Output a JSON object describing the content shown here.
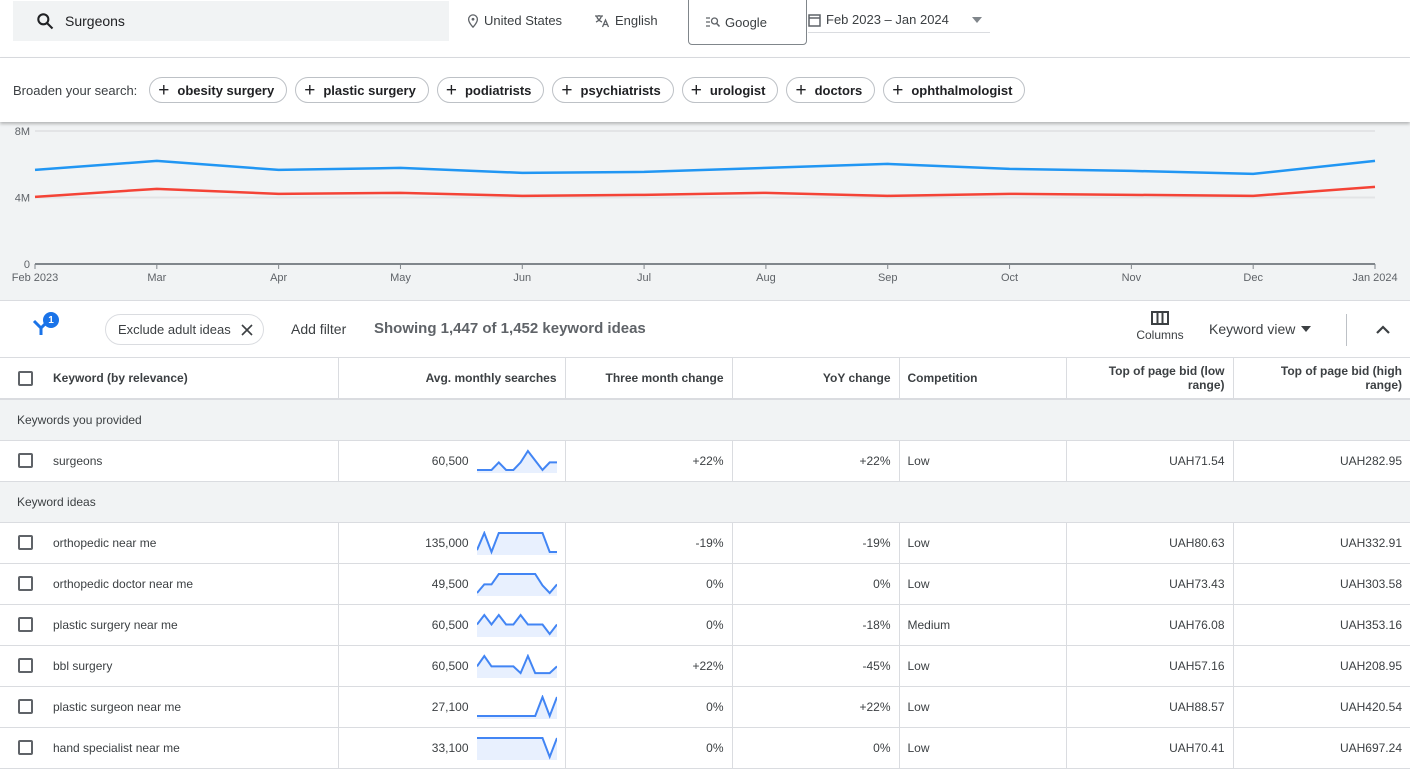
{
  "topbar": {
    "search_value": "Surgeons",
    "location": "United States",
    "language": "English",
    "network": "Google",
    "date_range": "Feb 2023 – Jan 2024"
  },
  "broaden": {
    "label": "Broaden your search:",
    "chips": [
      "obesity surgery",
      "plastic surgery",
      "podiatrists",
      "psychiatrists",
      "urologist",
      "doctors",
      "ophthalmologist"
    ]
  },
  "chart_data": {
    "type": "line",
    "x": [
      "Feb 2023",
      "Mar",
      "Apr",
      "May",
      "Jun",
      "Jul",
      "Aug",
      "Sep",
      "Oct",
      "Nov",
      "Dec",
      "Jan 2024"
    ],
    "ytick_labels": [
      "0",
      "4M",
      "8M"
    ],
    "ylim": [
      0,
      8000000
    ],
    "grid": true,
    "series": [
      {
        "color": "#2196f3",
        "values": [
          5660000,
          6200000,
          5660000,
          5780000,
          5480000,
          5540000,
          5780000,
          6020000,
          5720000,
          5600000,
          5420000,
          6200000
        ]
      },
      {
        "color": "#f44336",
        "values": [
          4040000,
          4520000,
          4220000,
          4280000,
          4100000,
          4160000,
          4280000,
          4100000,
          4220000,
          4160000,
          4100000,
          4640000
        ]
      }
    ]
  },
  "toolbar": {
    "filter_count": "1",
    "filter_chip": "Exclude adult ideas",
    "add_filter": "Add filter",
    "showing": "Showing 1,447 of 1,452 keyword ideas",
    "columns": "Columns",
    "view": "Keyword view"
  },
  "table": {
    "headers": [
      "Keyword (by relevance)",
      "Avg. monthly searches",
      "Three month change",
      "YoY change",
      "Competition",
      "Top of page bid (low range)",
      "Top of page bid (high range)"
    ],
    "groups": [
      {
        "label": "Keywords you provided",
        "rows": [
          {
            "keyword": "surgeons",
            "avg": "60,500",
            "trend": [
              0,
              0,
              0,
              0.4,
              0,
              0,
              0.4,
              1,
              0.5,
              0,
              0.4,
              0.4
            ],
            "three": "+22%",
            "yoy": "+22%",
            "comp": "Low",
            "low": "UAH71.54",
            "high": "UAH282.95"
          }
        ]
      },
      {
        "label": "Keyword ideas",
        "rows": [
          {
            "keyword": "orthopedic near me",
            "avg": "135,000",
            "trend": [
              0.1,
              1,
              0,
              1,
              1,
              1,
              1,
              1,
              1,
              1,
              0,
              0
            ],
            "three": "-19%",
            "yoy": "-19%",
            "comp": "Low",
            "low": "UAH80.63",
            "high": "UAH332.91"
          },
          {
            "keyword": "orthopedic doctor near me",
            "avg": "49,500",
            "trend": [
              0,
              0.45,
              0.45,
              1,
              1,
              1,
              1,
              1,
              1,
              0.4,
              0,
              0.45
            ],
            "three": "0%",
            "yoy": "0%",
            "comp": "Low",
            "low": "UAH73.43",
            "high": "UAH303.58"
          },
          {
            "keyword": "plastic surgery near me",
            "avg": "60,500",
            "trend": [
              0.5,
              1,
              0.5,
              1,
              0.5,
              0.5,
              1,
              0.5,
              0.5,
              0.5,
              0,
              0.5
            ],
            "three": "0%",
            "yoy": "-18%",
            "comp": "Medium",
            "low": "UAH76.08",
            "high": "UAH353.16"
          },
          {
            "keyword": "bbl surgery",
            "avg": "60,500",
            "trend": [
              0.45,
              1,
              0.45,
              0.45,
              0.45,
              0.45,
              0.1,
              1,
              0.1,
              0.1,
              0.1,
              0.45
            ],
            "three": "+22%",
            "yoy": "-45%",
            "comp": "Low",
            "low": "UAH57.16",
            "high": "UAH208.95"
          },
          {
            "keyword": "plastic surgeon near me",
            "avg": "27,100",
            "trend": [
              0,
              0,
              0,
              0,
              0,
              0,
              0,
              0,
              0,
              1,
              0,
              1
            ],
            "three": "0%",
            "yoy": "+22%",
            "comp": "Low",
            "low": "UAH88.57",
            "high": "UAH420.54"
          },
          {
            "keyword": "hand specialist near me",
            "avg": "33,100",
            "trend": [
              1,
              1,
              1,
              1,
              1,
              1,
              1,
              1,
              1,
              1,
              0,
              1
            ],
            "three": "0%",
            "yoy": "0%",
            "comp": "Low",
            "low": "UAH70.41",
            "high": "UAH697.24"
          }
        ]
      }
    ]
  }
}
